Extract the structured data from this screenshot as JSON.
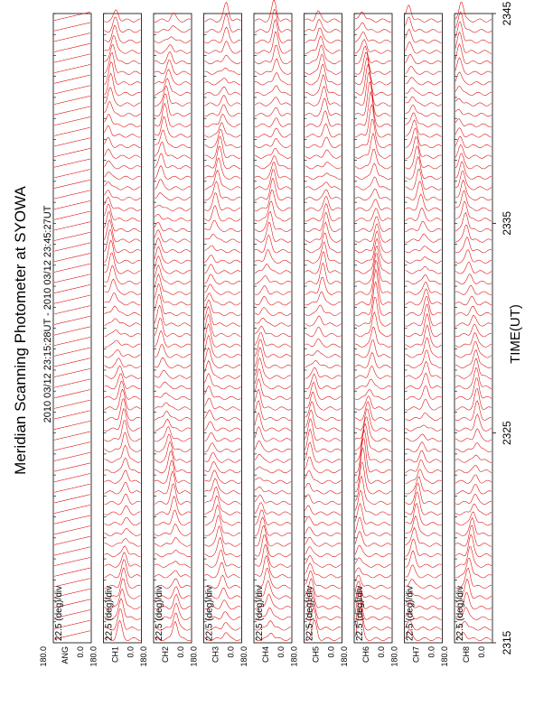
{
  "title": "Meridian Scanning Photometer at SYOWA",
  "time_range": "2010 03/12 23:15:28UT - 2010 03/12 23:45:27UT",
  "x_axis_label": "TIME(UT)",
  "chart_data": {
    "type": "line",
    "title": "Meridian Scanning Photometer at SYOWA",
    "subtitle": "2010 03/12 23:15:28UT - 2010 03/12 23:45:27UT",
    "xlabel": "TIME(UT)",
    "x_ticks": [
      "2315",
      "2325",
      "2335",
      "2345"
    ],
    "xlim": [
      "2315",
      "2345"
    ],
    "scale_label": "22.5 (deg)/div",
    "line_color": "#e00000",
    "panels": [
      {
        "name": "ANG",
        "y_top": "180.0",
        "y_bottom": "0.0",
        "kind": "angle"
      },
      {
        "name": "CH1",
        "y_top": "180.0",
        "y_bottom": "0.0",
        "kind": "intensity",
        "phase": 0.3
      },
      {
        "name": "CH2",
        "y_top": "180.0",
        "y_bottom": "0.0",
        "kind": "intensity",
        "phase": 1.1
      },
      {
        "name": "CH3",
        "y_top": "180.0",
        "y_bottom": "0.0",
        "kind": "intensity",
        "phase": 2.0
      },
      {
        "name": "CH4",
        "y_top": "180.0",
        "y_bottom": "0.0",
        "kind": "intensity",
        "phase": 2.7
      },
      {
        "name": "CH5",
        "y_top": "180.0",
        "y_bottom": "0.0",
        "kind": "intensity",
        "phase": 3.5
      },
      {
        "name": "CH6",
        "y_top": "180.0",
        "y_bottom": "0.0",
        "kind": "intensity",
        "phase": 4.2,
        "strong": true
      },
      {
        "name": "CH7",
        "y_top": "180.0",
        "y_bottom": "0.0",
        "kind": "intensity",
        "phase": 5.0
      },
      {
        "name": "CH8",
        "y_top": "180.0",
        "y_bottom": "0.0",
        "kind": "intensity",
        "phase": 5.8
      }
    ]
  }
}
